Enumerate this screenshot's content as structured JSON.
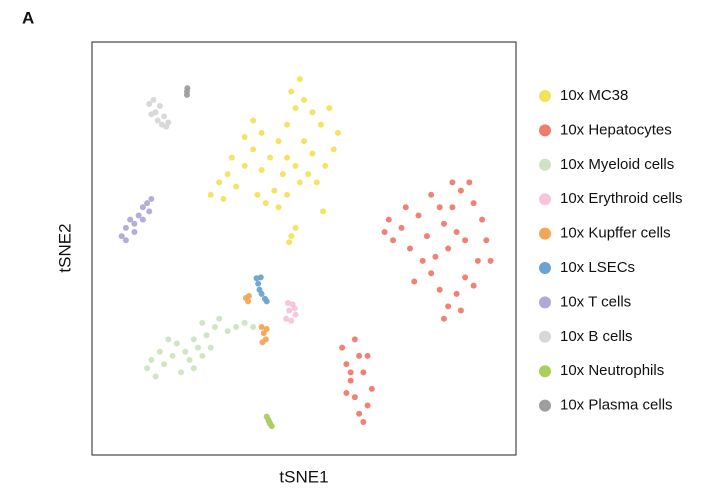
{
  "chart_data": {
    "type": "scatter",
    "panel_label": "A",
    "xlabel": "tSNE1",
    "ylabel": "tSNE2",
    "xlim": [
      0,
      100
    ],
    "ylim": [
      0,
      100
    ],
    "legend": "right",
    "series": [
      {
        "name": "10x MC38",
        "color": "#f3e35b",
        "x": [
          30,
          32,
          34,
          36,
          33,
          38,
          40,
          42,
          44,
          46,
          48,
          47,
          49,
          50,
          52,
          54,
          56,
          58,
          57,
          55,
          52,
          50,
          48,
          45,
          43,
          41,
          39,
          44,
          46,
          49,
          51,
          53,
          36,
          38,
          40,
          46,
          28,
          31,
          47,
          48,
          46.5,
          54.5
        ],
        "y": [
          66,
          68,
          65,
          70,
          72,
          74,
          69,
          72,
          76,
          80,
          84,
          88,
          91,
          86,
          83,
          80,
          84,
          78,
          74,
          70,
          73,
          76,
          70,
          68,
          64,
          61,
          63,
          60,
          63,
          66,
          68,
          66,
          77,
          81,
          78,
          72,
          63,
          62,
          53,
          55,
          51.5,
          59
        ]
      },
      {
        "name": "10x Hepatocytes",
        "color": "#ef7b6e",
        "x": [
          69,
          71,
          70,
          73,
          75,
          77,
          79,
          81,
          83,
          85,
          87,
          89,
          90,
          92,
          93,
          91,
          88,
          86,
          84,
          82,
          80,
          78,
          76,
          84,
          86,
          88,
          82,
          80,
          85,
          74,
          90,
          94,
          83,
          87,
          59,
          60,
          61,
          62,
          63,
          64,
          65,
          66,
          64,
          63,
          62,
          61,
          60,
          65
        ],
        "y": [
          54,
          52,
          57,
          55,
          50,
          58,
          53,
          48,
          56,
          60,
          64,
          66,
          61,
          57,
          52,
          47,
          43,
          39,
          36,
          40,
          44,
          47,
          42,
          50,
          54,
          52,
          60,
          63,
          66,
          60,
          41,
          47,
          33,
          35,
          26,
          22,
          18,
          14,
          10,
          8,
          12,
          16,
          20,
          24,
          28,
          20,
          15,
          24
        ]
      },
      {
        "name": "10x Myeloid cells",
        "color": "#cfe3c2",
        "x": [
          13,
          15,
          17,
          19,
          21,
          23,
          25,
          27,
          29,
          30,
          28,
          26,
          24,
          22,
          20,
          18,
          16,
          14,
          26,
          24,
          32,
          34,
          36,
          38
        ],
        "y": [
          21,
          19,
          22,
          24,
          20,
          23,
          26,
          29,
          31,
          33,
          26,
          24,
          28,
          25,
          27,
          28,
          25,
          23,
          32,
          21,
          30,
          31,
          32,
          31
        ]
      },
      {
        "name": "10x Erythroid cells",
        "color": "#f6c4dc",
        "x": [
          45.8,
          46.5,
          47.3,
          48,
          47,
          46.2,
          47.8
        ],
        "y": [
          33,
          35,
          36.5,
          34,
          32.5,
          36.8,
          35.5
        ]
      },
      {
        "name": "10x Kupffer cells",
        "color": "#f3a752",
        "x": [
          36.3,
          37,
          36.8,
          40,
          40.5,
          41,
          40.2,
          41.2
        ],
        "y": [
          38,
          38.5,
          37.2,
          31,
          29.5,
          28,
          27.3,
          30.5
        ]
      },
      {
        "name": "10x LSECs",
        "color": "#6ba3d0",
        "x": [
          38.8,
          39.2,
          39.5,
          40,
          40.8,
          41.2,
          39.8
        ],
        "y": [
          42.8,
          41.5,
          40,
          39,
          37.8,
          37.2,
          43
        ]
      },
      {
        "name": "10x T cells",
        "color": "#aeaad6",
        "x": [
          7,
          8,
          9,
          10,
          11,
          12,
          13,
          14,
          12,
          10,
          8,
          13.5
        ],
        "y": [
          53,
          55,
          57,
          56,
          58,
          60,
          61,
          62,
          57,
          54,
          52,
          59
        ]
      },
      {
        "name": "10x B cells",
        "color": "#d7d7d7",
        "x": [
          13.5,
          14.5,
          15,
          16,
          17,
          18,
          15.5,
          14,
          17.5,
          16.5
        ],
        "y": [
          85,
          86,
          83,
          84.5,
          82,
          80.5,
          81,
          82.5,
          79.5,
          80
        ]
      },
      {
        "name": "10x Neutrophils",
        "color": "#a9cf5d",
        "x": [
          41.2,
          41.6,
          42,
          42.4,
          41.8
        ],
        "y": [
          9.3,
          8.5,
          7.6,
          7,
          8
        ]
      },
      {
        "name": "10x Plasma cells",
        "color": "#9e9e9e",
        "x": [
          22.4,
          22.4,
          22.5
        ],
        "y": [
          87.2,
          88,
          88.8
        ]
      }
    ]
  }
}
